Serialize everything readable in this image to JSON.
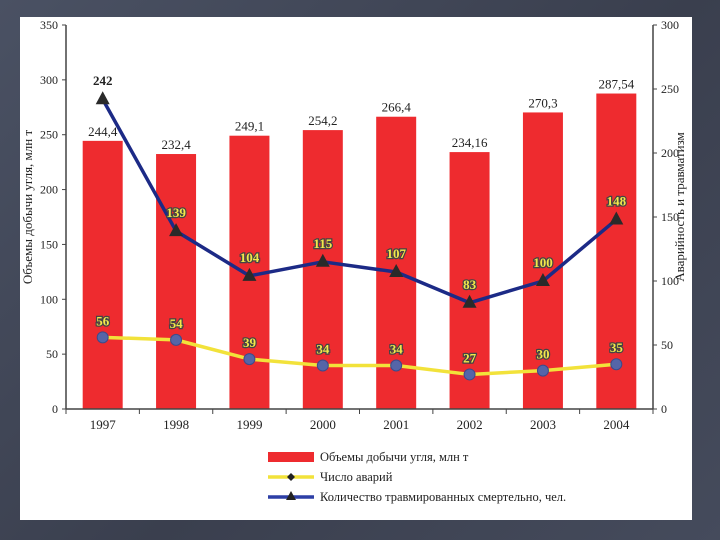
{
  "chart_data": {
    "type": "bar",
    "categories": [
      "1997",
      "1998",
      "1999",
      "2000",
      "2001",
      "2002",
      "2003",
      "2004"
    ],
    "ylabel": "Объемы добычи угля, млн т",
    "y2label": "Аварийность и травматизм",
    "ylim": [
      0,
      350
    ],
    "y2lim": [
      0,
      300
    ],
    "y_ticks": [
      "0",
      "50",
      "100",
      "150",
      "200",
      "250",
      "300",
      "350"
    ],
    "y2_ticks": [
      "0",
      "50",
      "100",
      "150",
      "200",
      "250",
      "300"
    ],
    "legend_position": "bottom",
    "series": [
      {
        "name": "Объемы добычи угля, млн т",
        "type": "bar",
        "axis": "left",
        "color": "#ee2b2f",
        "values": [
          244.4,
          232.4,
          249.1,
          254.2,
          266.4,
          234.16,
          270.3,
          287.54
        ],
        "labels": [
          "244,4",
          "232,4",
          "249,1",
          "254,2",
          "266,4",
          "234,16",
          "270,3",
          "287,54"
        ]
      },
      {
        "name": "Число аварий",
        "type": "line",
        "axis": "right",
        "color": "#f2e23a",
        "marker": "diamond",
        "values": [
          56,
          54,
          39,
          34,
          34,
          27,
          30,
          35
        ],
        "labels": [
          "56",
          "54",
          "39",
          "34",
          "34",
          "27",
          "30",
          "35"
        ]
      },
      {
        "name": "Количество травмированных смертельно, чел.",
        "type": "line",
        "axis": "right",
        "color": "#1c2a86",
        "marker": "triangle",
        "values": [
          242,
          139,
          104,
          115,
          107,
          83,
          100,
          148
        ],
        "labels": [
          "242",
          "139",
          "104",
          "115",
          "107",
          "83",
          "100",
          "148"
        ]
      }
    ]
  }
}
